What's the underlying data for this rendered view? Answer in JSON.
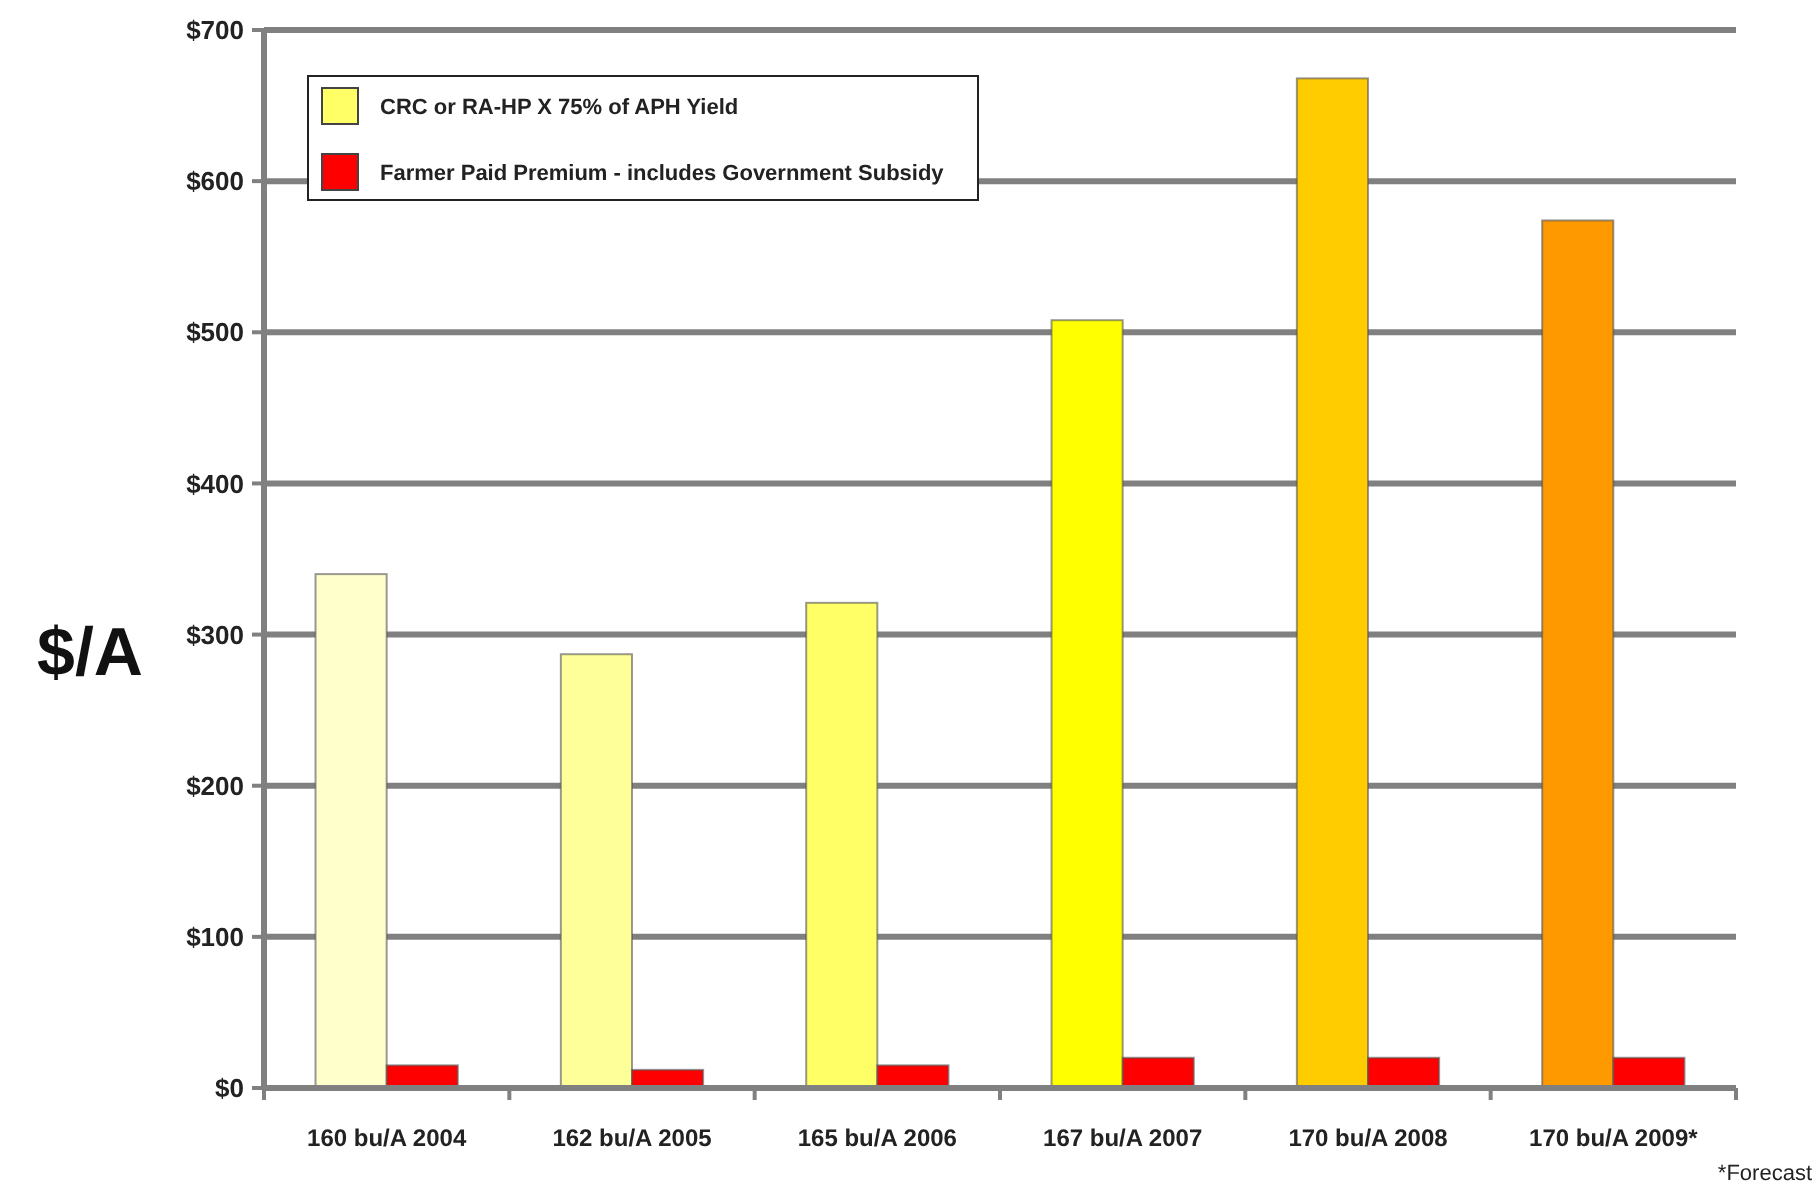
{
  "chart_data": {
    "type": "bar",
    "ylabel": "$/A",
    "categories": [
      "160 bu/A 2004",
      "162 bu/A 2005",
      "165 bu/A 2006",
      "167 bu/A 2007",
      "170 bu/A 2008",
      "170 bu/A 2009*"
    ],
    "series": [
      {
        "name": "CRC or RA-HP X 75% of APH Yield",
        "color": "#ffff66",
        "colors": [
          "#ffffcc",
          "#ffff99",
          "#ffff66",
          "#ffff00",
          "#ffcc00",
          "#ff9900"
        ],
        "values": [
          340,
          287,
          321,
          508,
          668,
          574
        ]
      },
      {
        "name": "Farmer Paid Premium - includes Government Subsidy",
        "color": "#ff0000",
        "values": [
          15,
          12,
          15,
          20,
          20,
          20
        ]
      }
    ],
    "ylim": [
      0,
      700
    ],
    "yticks": [
      {
        "value": 0,
        "label": "$0"
      },
      {
        "value": 100,
        "label": "$100"
      },
      {
        "value": 200,
        "label": "$200"
      },
      {
        "value": 300,
        "label": "$300"
      },
      {
        "value": 400,
        "label": "$400"
      },
      {
        "value": 500,
        "label": "$500"
      },
      {
        "value": 600,
        "label": "$600"
      },
      {
        "value": 700,
        "label": "$700"
      }
    ],
    "grid": "y",
    "legend": "top left",
    "annotations": [
      "*Forecast"
    ]
  }
}
